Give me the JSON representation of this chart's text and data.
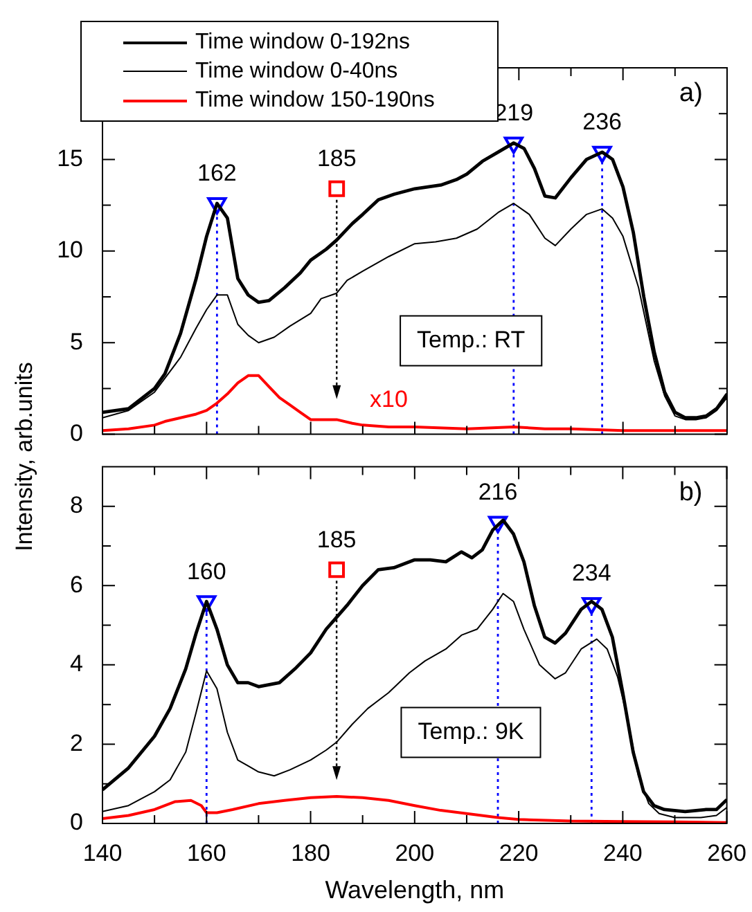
{
  "chart_data": [
    {
      "type": "line",
      "ylabel": "Intensity, arb.units",
      "legend": "top left",
      "tick_labels": "y",
      "marker": "none",
      "xlim": [
        140,
        260
      ],
      "xticks": [
        140,
        {
          "value": 150,
          "label": null
        },
        160,
        {
          "value": 170,
          "label": null
        },
        180,
        {
          "value": 190,
          "label": null
        },
        200,
        {
          "value": 210,
          "label": null
        },
        220,
        {
          "value": 230,
          "label": null
        },
        240,
        {
          "value": 250,
          "label": null
        },
        260
      ],
      "ylim": [
        0,
        20
      ],
      "yticks": [
        0,
        {
          "value": 2.5,
          "label": null
        },
        5,
        {
          "value": 7.5,
          "label": null
        },
        10,
        {
          "value": 12.5,
          "label": null
        },
        15,
        {
          "value": 17.5,
          "label": null
        }
      ],
      "series": [
        {
          "name": "Time window 0-192ns",
          "color": "#000000",
          "x": [
            140,
            145,
            150,
            152,
            155,
            158,
            160,
            162,
            164,
            166,
            168,
            170,
            172,
            175,
            178,
            180,
            183,
            185,
            188,
            190,
            193,
            196,
            200,
            205,
            208,
            210,
            213,
            216,
            219,
            221,
            223,
            225,
            227,
            230,
            233,
            236,
            238,
            240,
            242,
            244,
            246,
            248,
            250,
            252,
            254,
            256,
            258,
            260
          ],
          "values": [
            1.2,
            1.4,
            2.5,
            3.3,
            5.5,
            8.5,
            10.8,
            12.6,
            11.8,
            8.5,
            7.6,
            7.2,
            7.3,
            8.0,
            8.8,
            9.5,
            10.1,
            10.6,
            11.5,
            12.0,
            12.8,
            13.1,
            13.4,
            13.6,
            13.9,
            14.2,
            14.9,
            15.4,
            15.9,
            15.6,
            14.5,
            13.0,
            12.9,
            14.0,
            15.0,
            15.4,
            15.0,
            13.5,
            11.0,
            7.5,
            4.5,
            2.3,
            1.2,
            0.9,
            0.9,
            1.0,
            1.4,
            2.2
          ]
        },
        {
          "name": "Time window 0-40ns",
          "color": "#000000",
          "x": [
            140,
            145,
            150,
            155,
            158,
            160,
            162,
            164,
            166,
            168,
            170,
            173,
            176,
            180,
            182,
            185,
            187,
            190,
            195,
            200,
            204,
            208,
            212,
            216,
            219,
            222,
            225,
            227,
            230,
            233,
            236,
            238,
            240,
            243,
            246,
            248,
            250,
            252,
            254,
            256,
            258,
            260
          ],
          "values": [
            0.9,
            1.3,
            2.3,
            4.2,
            5.8,
            6.8,
            7.6,
            7.6,
            6.0,
            5.4,
            5.0,
            5.3,
            5.9,
            6.6,
            7.4,
            7.7,
            8.4,
            8.9,
            9.7,
            10.4,
            10.5,
            10.7,
            11.2,
            12.1,
            12.6,
            12.0,
            10.7,
            10.3,
            11.2,
            12.0,
            12.3,
            11.8,
            10.8,
            8.0,
            4.0,
            2.1,
            1.0,
            0.8,
            0.8,
            0.9,
            1.3,
            2.0
          ]
        },
        {
          "name": "Time window 150-190ns",
          "color": "#ff0000",
          "x": [
            140,
            145,
            150,
            152,
            155,
            158,
            160,
            162,
            164,
            166,
            168,
            170,
            172,
            174,
            176,
            178,
            180,
            185,
            188,
            190,
            195,
            200,
            210,
            219,
            225,
            230,
            240,
            250,
            260
          ],
          "values": [
            0.2,
            0.3,
            0.5,
            0.7,
            0.9,
            1.1,
            1.3,
            1.7,
            2.2,
            2.8,
            3.2,
            3.2,
            2.6,
            2.0,
            1.6,
            1.2,
            0.8,
            0.8,
            0.6,
            0.5,
            0.4,
            0.4,
            0.3,
            0.4,
            0.3,
            0.3,
            0.2,
            0.2,
            0.2
          ]
        },
        {
          "type": "lollipop",
          "color": "#0000ff",
          "marker": "triangle",
          "line_style": "dotted",
          "x": [
            162,
            219,
            236
          ],
          "values": [
            12.6,
            15.9,
            15.4
          ]
        },
        {
          "type": "scatter",
          "color": "#ff0000",
          "marker": "square",
          "x": [
            185
          ],
          "values": [
            13.4
          ]
        }
      ],
      "annotations": [
        "a)",
        "Temp.: RT",
        {
          "text": "162",
          "x": 162,
          "y": 12.6
        },
        {
          "text": "219",
          "x": 219,
          "y": 15.9
        },
        {
          "text": "236",
          "x": 236,
          "y": 15.4
        },
        {
          "text": "185",
          "x": 185,
          "y": 13.4
        },
        {
          "text": "x10",
          "x": 195,
          "y": 0.4
        }
      ]
    },
    {
      "type": "line",
      "xlabel": "Wavelength, nm",
      "marker": "none",
      "xlim": [
        140,
        260
      ],
      "xticks": [
        140,
        {
          "value": 150,
          "label": null
        },
        160,
        {
          "value": 170,
          "label": null
        },
        180,
        {
          "value": 190,
          "label": null
        },
        200,
        {
          "value": 210,
          "label": null
        },
        220,
        {
          "value": 230,
          "label": null
        },
        240,
        {
          "value": 250,
          "label": null
        },
        260
      ],
      "ylim": [
        0,
        9
      ],
      "yticks": [
        0,
        {
          "value": 1,
          "label": null
        },
        2,
        {
          "value": 3,
          "label": null
        },
        4,
        {
          "value": 5,
          "label": null
        },
        6,
        {
          "value": 7,
          "label": null
        },
        8
      ],
      "series": [
        {
          "color": "#000000",
          "x": [
            140,
            145,
            150,
            153,
            156,
            158,
            160,
            162,
            164,
            166,
            168,
            170,
            174,
            177,
            180,
            183,
            185,
            187,
            190,
            193,
            196,
            200,
            203,
            206,
            209,
            211,
            213,
            215,
            217,
            219,
            221,
            223,
            225,
            227,
            229,
            232,
            234,
            236,
            238,
            240,
            242,
            244,
            246,
            248,
            252,
            256,
            258,
            260
          ],
          "values": [
            0.85,
            1.4,
            2.2,
            2.9,
            3.9,
            4.8,
            5.6,
            4.9,
            4.0,
            3.55,
            3.55,
            3.45,
            3.55,
            3.9,
            4.3,
            4.9,
            5.2,
            5.5,
            6.0,
            6.4,
            6.45,
            6.65,
            6.65,
            6.6,
            6.85,
            6.7,
            6.9,
            7.4,
            7.65,
            7.3,
            6.6,
            5.5,
            4.7,
            4.55,
            4.8,
            5.4,
            5.6,
            5.4,
            4.7,
            3.3,
            1.8,
            0.8,
            0.45,
            0.35,
            0.3,
            0.35,
            0.35,
            0.6
          ]
        },
        {
          "color": "#000000",
          "x": [
            140,
            145,
            150,
            153,
            156,
            158,
            160,
            162,
            164,
            166,
            168,
            170,
            173,
            176,
            180,
            183,
            185,
            188,
            191,
            195,
            199,
            202,
            206,
            209,
            212,
            215,
            217,
            219,
            221,
            224,
            227,
            229,
            232,
            235,
            237,
            239,
            241,
            243,
            245,
            247,
            250,
            255,
            258,
            260
          ],
          "values": [
            0.3,
            0.45,
            0.8,
            1.1,
            1.8,
            2.8,
            3.85,
            3.4,
            2.3,
            1.6,
            1.45,
            1.3,
            1.2,
            1.35,
            1.6,
            1.85,
            2.05,
            2.5,
            2.9,
            3.3,
            3.8,
            4.1,
            4.4,
            4.75,
            4.9,
            5.4,
            5.8,
            5.6,
            4.9,
            4.0,
            3.65,
            3.8,
            4.4,
            4.65,
            4.4,
            3.7,
            2.6,
            1.2,
            0.5,
            0.25,
            0.15,
            0.15,
            0.2,
            0.4
          ]
        },
        {
          "color": "#ff0000",
          "x": [
            140,
            145,
            150,
            154,
            157,
            159,
            160,
            162,
            165,
            170,
            175,
            180,
            185,
            190,
            195,
            200,
            205,
            210,
            216,
            220,
            230,
            240,
            250,
            260
          ],
          "values": [
            0.12,
            0.2,
            0.35,
            0.55,
            0.58,
            0.45,
            0.27,
            0.27,
            0.35,
            0.5,
            0.58,
            0.65,
            0.68,
            0.65,
            0.58,
            0.45,
            0.33,
            0.25,
            0.15,
            0.1,
            0.06,
            0.05,
            0.04,
            0.02
          ]
        },
        {
          "type": "lollipop",
          "color": "#0000ff",
          "marker": "triangle",
          "line_style": "dotted",
          "x": [
            160,
            216,
            234
          ],
          "values": [
            5.6,
            7.6,
            5.55
          ]
        },
        {
          "type": "scatter",
          "color": "#ff0000",
          "marker": "square",
          "x": [
            185
          ],
          "values": [
            6.4
          ]
        }
      ],
      "annotations": [
        "b)",
        "Temp.: 9K",
        {
          "text": "160",
          "x": 160,
          "y": 5.6
        },
        {
          "text": "216",
          "x": 216,
          "y": 7.6
        },
        {
          "text": "234",
          "x": 234,
          "y": 5.55
        },
        {
          "text": "185",
          "x": 185,
          "y": 6.4
        }
      ]
    }
  ]
}
